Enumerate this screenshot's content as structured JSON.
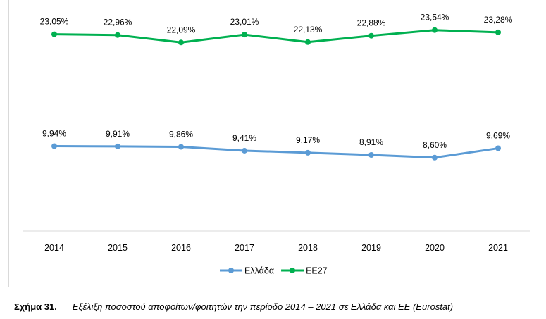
{
  "chart_data": {
    "type": "line",
    "categories": [
      "2014",
      "2015",
      "2016",
      "2017",
      "2018",
      "2019",
      "2020",
      "2021"
    ],
    "series": [
      {
        "name": "Ελλάδα",
        "color": "#5b9bd5",
        "values": [
          9.94,
          9.91,
          9.86,
          9.41,
          9.17,
          8.91,
          8.6,
          9.69
        ],
        "labels": [
          "9,94%",
          "9,91%",
          "9,86%",
          "9,41%",
          "9,17%",
          "8,91%",
          "8,60%",
          "9,69%"
        ]
      },
      {
        "name": "ΕΕ27",
        "color": "#00b050",
        "values": [
          23.05,
          22.96,
          22.09,
          23.01,
          22.13,
          22.88,
          23.54,
          23.28
        ],
        "labels": [
          "23,05%",
          "22,96%",
          "22,09%",
          "23,01%",
          "22,13%",
          "22,88%",
          "23,54%",
          "23,28%"
        ]
      }
    ],
    "ylim": [
      0,
      25
    ],
    "grid": false,
    "legend": "bottom"
  },
  "caption": {
    "number": "Σχήμα 31.",
    "text": "Εξέλιξη ποσοστού αποφοίτων/φοιτητών την περίοδο 2014 – 2021 σε Ελλάδα και ΕΕ (Eurostat)"
  }
}
